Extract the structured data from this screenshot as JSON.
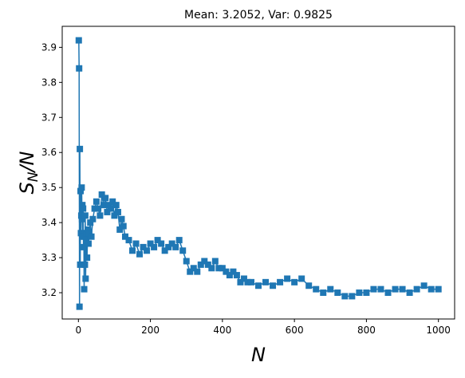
{
  "chart_data": {
    "type": "line",
    "title": "Mean: 3.2052, Var: 0.9825",
    "xlabel": "N",
    "ylabel": {
      "main": "S",
      "sub": "N",
      "tail": "/N"
    },
    "xlim": [
      -45,
      1045
    ],
    "ylim": [
      3.125,
      3.96
    ],
    "x_ticks": [
      0,
      200,
      400,
      600,
      800,
      1000
    ],
    "x_tick_labels": [
      "0",
      "200",
      "400",
      "600",
      "800",
      "1000"
    ],
    "y_ticks": [
      3.2,
      3.3,
      3.4,
      3.5,
      3.6,
      3.7,
      3.8,
      3.9
    ],
    "y_tick_labels": [
      "3.2",
      "3.3",
      "3.4",
      "3.5",
      "3.6",
      "3.7",
      "3.8",
      "3.9"
    ],
    "grid": false,
    "marker": "square",
    "color": "#1f77b4",
    "series": [
      {
        "x": [
          1,
          2,
          3,
          4,
          5,
          6,
          7,
          8,
          9,
          10,
          11,
          12,
          13,
          14,
          15,
          16,
          17,
          18,
          19,
          20,
          22,
          24,
          26,
          28,
          30,
          33,
          36,
          40,
          45,
          50,
          55,
          60,
          65,
          70,
          75,
          80,
          85,
          90,
          95,
          100,
          105,
          110,
          115,
          120,
          125,
          130,
          140,
          150,
          160,
          170,
          180,
          190,
          200,
          210,
          220,
          230,
          240,
          250,
          260,
          270,
          280,
          290,
          300,
          310,
          320,
          330,
          340,
          350,
          360,
          370,
          380,
          390,
          400,
          410,
          420,
          430,
          440,
          450,
          460,
          470,
          480,
          500,
          520,
          540,
          560,
          580,
          600,
          620,
          640,
          660,
          680,
          700,
          720,
          740,
          760,
          780,
          800,
          820,
          840,
          860,
          880,
          900,
          920,
          940,
          960,
          980,
          1000
        ],
        "y": [
          3.92,
          3.84,
          3.16,
          3.61,
          3.28,
          3.49,
          3.37,
          3.42,
          3.5,
          3.41,
          3.45,
          3.36,
          3.44,
          3.33,
          3.37,
          3.21,
          3.36,
          3.28,
          3.42,
          3.24,
          3.37,
          3.3,
          3.38,
          3.34,
          3.37,
          3.4,
          3.36,
          3.41,
          3.44,
          3.46,
          3.44,
          3.42,
          3.48,
          3.45,
          3.47,
          3.43,
          3.45,
          3.44,
          3.46,
          3.42,
          3.45,
          3.43,
          3.38,
          3.41,
          3.39,
          3.36,
          3.35,
          3.32,
          3.34,
          3.31,
          3.33,
          3.32,
          3.34,
          3.33,
          3.35,
          3.34,
          3.32,
          3.33,
          3.34,
          3.33,
          3.35,
          3.32,
          3.29,
          3.26,
          3.27,
          3.26,
          3.28,
          3.29,
          3.28,
          3.27,
          3.29,
          3.27,
          3.27,
          3.26,
          3.25,
          3.26,
          3.25,
          3.23,
          3.24,
          3.23,
          3.23,
          3.22,
          3.23,
          3.22,
          3.23,
          3.24,
          3.23,
          3.24,
          3.22,
          3.21,
          3.2,
          3.21,
          3.2,
          3.19,
          3.19,
          3.2,
          3.2,
          3.21,
          3.21,
          3.2,
          3.21,
          3.21,
          3.2,
          3.21,
          3.22,
          3.21,
          3.21
        ]
      }
    ]
  }
}
